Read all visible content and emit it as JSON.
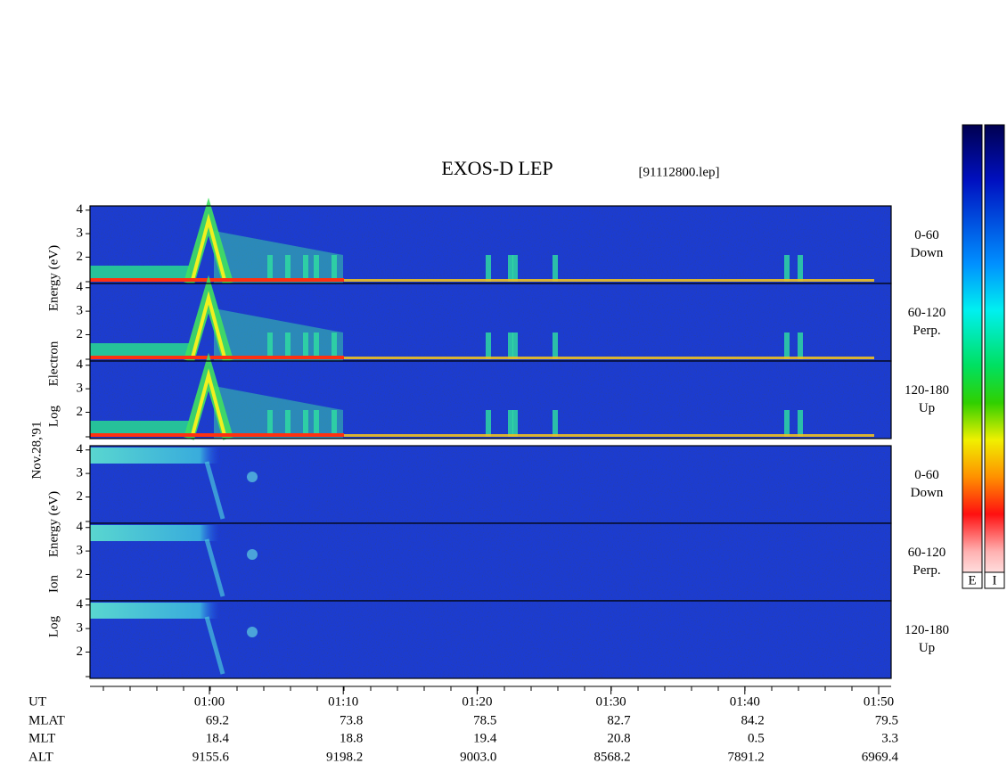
{
  "title": "EXOS-D LEP",
  "file": "[91112800.lep]",
  "date": "Nov.28,'91",
  "electron_axis_label": [
    "Log",
    "Electron",
    "Energy (eV)"
  ],
  "ion_axis_label": [
    "Log",
    "Ion",
    "Energy (eV)"
  ],
  "panels": [
    {
      "species": "electron",
      "angle": "0-60",
      "direction": "Down",
      "ylim": [
        0.88,
        4.18
      ],
      "yticks": [
        2,
        3,
        4
      ]
    },
    {
      "species": "electron",
      "angle": "60-120",
      "direction": "Perp.",
      "ylim": [
        0.88,
        4.18
      ],
      "yticks": [
        2,
        3,
        4
      ]
    },
    {
      "species": "electron",
      "angle": "120-180",
      "direction": "Up",
      "ylim": [
        0.88,
        4.18
      ],
      "yticks": [
        2,
        3,
        4
      ]
    },
    {
      "species": "ion",
      "angle": "0-60",
      "direction": "Down",
      "ylim": [
        0.88,
        4.18
      ],
      "yticks": [
        2,
        3,
        4
      ]
    },
    {
      "species": "ion",
      "angle": "60-120",
      "direction": "Perp.",
      "ylim": [
        0.88,
        4.18
      ],
      "yticks": [
        2,
        3,
        4
      ]
    },
    {
      "species": "ion",
      "angle": "120-180",
      "direction": "Up",
      "ylim": [
        0.88,
        4.18
      ],
      "yticks": [
        2,
        3,
        4
      ]
    }
  ],
  "ephemeris": {
    "row_labels": [
      "UT",
      "MLAT",
      "MLT",
      "ALT"
    ],
    "columns": [
      [
        "01:00",
        "69.2",
        "18.4",
        "9155.6"
      ],
      [
        "01:10",
        "73.8",
        "18.8",
        "9198.2"
      ],
      [
        "01:20",
        "78.5",
        "19.4",
        "9003.0"
      ],
      [
        "01:30",
        "82.7",
        "20.8",
        "8568.2"
      ],
      [
        "01:40",
        "84.2",
        "0.5",
        "7891.2"
      ],
      [
        "01:50",
        "79.5",
        "3.3",
        "6969.4"
      ]
    ]
  },
  "colorbar_labels": [
    "E",
    "I"
  ]
}
